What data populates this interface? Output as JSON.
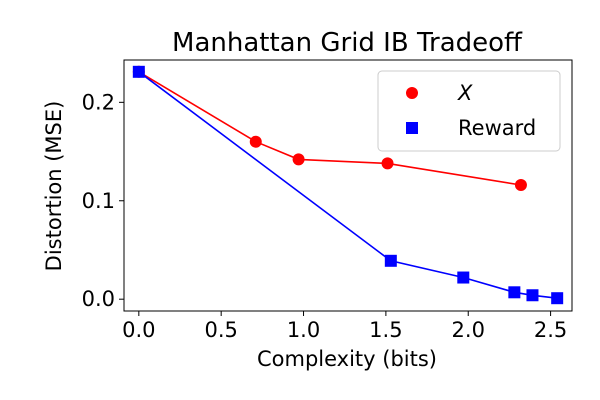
{
  "chart_data": {
    "type": "scatter",
    "title": "Manhattan Grid IB Tradeoff",
    "xlabel": "Complexity (bits)",
    "ylabel": "Distortion (MSE)",
    "xlim": [
      -0.09,
      2.63
    ],
    "ylim": [
      -0.012,
      0.243
    ],
    "xticks": [
      0.0,
      0.5,
      1.0,
      1.5,
      2.0,
      2.5
    ],
    "xtick_labels": [
      "0.0",
      "0.5",
      "1.0",
      "1.5",
      "2.0",
      "2.5"
    ],
    "yticks": [
      0.0,
      0.1,
      0.2
    ],
    "ytick_labels": [
      "0.0",
      "0.1",
      "0.2"
    ],
    "grid": false,
    "legend_position": "top-right",
    "series": [
      {
        "name": "X",
        "color": "#ff0000",
        "marker": "circle",
        "x": [
          0.0,
          0.71,
          0.97,
          1.51,
          2.32
        ],
        "y": [
          0.231,
          0.16,
          0.142,
          0.138,
          0.116
        ]
      },
      {
        "name": "Reward",
        "color": "#0000ff",
        "marker": "square",
        "x": [
          0.0,
          1.53,
          1.97,
          2.28,
          2.39,
          2.54
        ],
        "y": [
          0.231,
          0.039,
          0.022,
          0.007,
          0.004,
          0.001
        ]
      }
    ]
  }
}
